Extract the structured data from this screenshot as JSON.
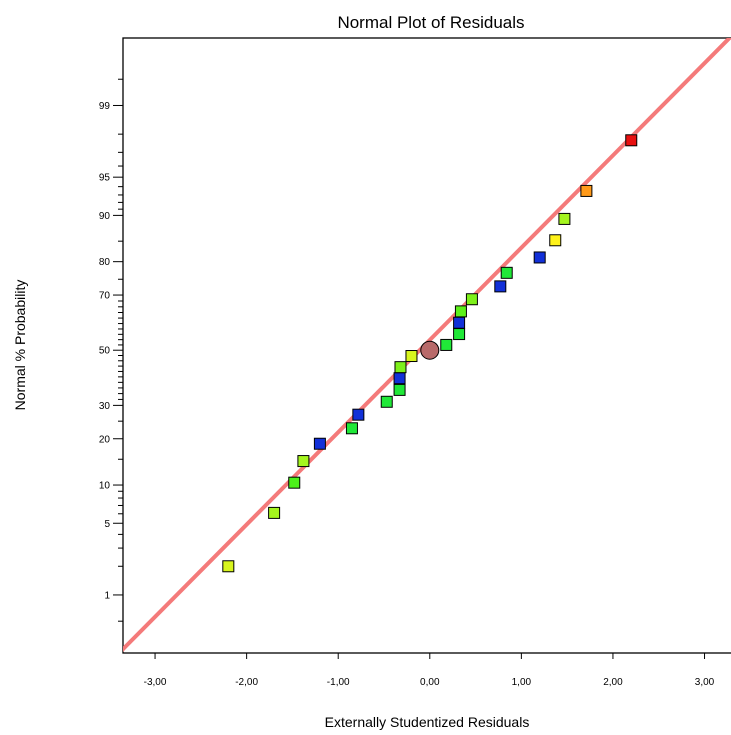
{
  "chart_data": {
    "type": "scatter",
    "title": "Normal Plot of Residuals",
    "xlabel": "Externally Studentized Residuals",
    "ylabel": "Normal % Probability",
    "xlim": [
      -3.35,
      3.3
    ],
    "ylim_percent": [
      0.2,
      99.85
    ],
    "y_scale": "normal-probability",
    "grid": false,
    "legend": "none",
    "x_ticks": [
      {
        "value": -3,
        "label": "-3,00"
      },
      {
        "value": -2,
        "label": "-2,00"
      },
      {
        "value": -1,
        "label": "-1,00"
      },
      {
        "value": 0,
        "label": "0,00"
      },
      {
        "value": 1,
        "label": "1,00"
      },
      {
        "value": 2,
        "label": "2,00"
      },
      {
        "value": 3,
        "label": "3,00"
      }
    ],
    "y_ticks": [
      {
        "value": 1,
        "label": "1"
      },
      {
        "value": 5,
        "label": "5"
      },
      {
        "value": 10,
        "label": "10"
      },
      {
        "value": 20,
        "label": "20"
      },
      {
        "value": 30,
        "label": "30"
      },
      {
        "value": 50,
        "label": "50"
      },
      {
        "value": 70,
        "label": "70"
      },
      {
        "value": 80,
        "label": "80"
      },
      {
        "value": 90,
        "label": "90"
      },
      {
        "value": 95,
        "label": "95"
      },
      {
        "value": 99,
        "label": "99"
      }
    ],
    "y_minor_ticks": [
      0.5,
      2,
      3,
      4,
      6,
      7,
      8,
      9,
      15,
      25,
      32,
      34,
      36,
      38,
      40,
      42,
      44,
      46,
      48,
      52,
      54,
      56,
      58,
      60,
      62,
      64,
      66,
      68,
      75,
      85,
      91,
      92,
      93,
      94,
      96,
      97,
      98,
      99.5
    ],
    "fit_line": {
      "color": "#f47a7a",
      "points": [
        [
          -3.45,
          0.17
        ],
        [
          3.35,
          99.88
        ]
      ]
    },
    "center_marker": {
      "x": 0,
      "y": 50,
      "color": "#b86a6a"
    },
    "points": [
      {
        "x": -2.2,
        "y": 2.0,
        "color": "#d8f51e"
      },
      {
        "x": -1.7,
        "y": 6.1,
        "color": "#a5f51e"
      },
      {
        "x": -1.48,
        "y": 10.4,
        "color": "#4cf01a"
      },
      {
        "x": -1.38,
        "y": 14.6,
        "color": "#a5f51e"
      },
      {
        "x": -1.2,
        "y": 18.7,
        "color": "#1230d8"
      },
      {
        "x": -0.85,
        "y": 22.9,
        "color": "#20e838"
      },
      {
        "x": -0.78,
        "y": 27.0,
        "color": "#1230d8"
      },
      {
        "x": -0.47,
        "y": 31.2,
        "color": "#20e838"
      },
      {
        "x": -0.33,
        "y": 35.3,
        "color": "#20e838"
      },
      {
        "x": -0.33,
        "y": 39.5,
        "color": "#1230d8"
      },
      {
        "x": -0.32,
        "y": 43.6,
        "color": "#7ef01a"
      },
      {
        "x": -0.2,
        "y": 47.8,
        "color": "#d8f51e"
      },
      {
        "x": 0.18,
        "y": 52.0,
        "color": "#20e838"
      },
      {
        "x": 0.32,
        "y": 56.1,
        "color": "#20e838"
      },
      {
        "x": 0.32,
        "y": 60.3,
        "color": "#1230d8"
      },
      {
        "x": 0.34,
        "y": 64.4,
        "color": "#5cf01a"
      },
      {
        "x": 0.46,
        "y": 68.6,
        "color": "#7ef01a"
      },
      {
        "x": 0.77,
        "y": 72.8,
        "color": "#1230d8"
      },
      {
        "x": 0.84,
        "y": 76.9,
        "color": "#20e838"
      },
      {
        "x": 1.2,
        "y": 81.1,
        "color": "#1230d8"
      },
      {
        "x": 1.37,
        "y": 85.2,
        "color": "#fff21a"
      },
      {
        "x": 1.47,
        "y": 89.4,
        "color": "#a5f51e"
      },
      {
        "x": 1.71,
        "y": 93.5,
        "color": "#ff9a1a"
      },
      {
        "x": 2.2,
        "y": 97.7,
        "color": "#e81010"
      }
    ]
  }
}
